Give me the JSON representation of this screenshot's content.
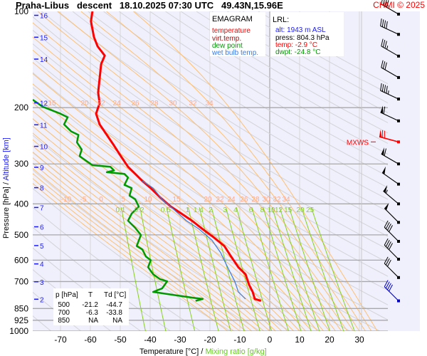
{
  "header": {
    "title": "Praha-Libus   descent   18.10.2025 07:30 UTC   49.43N,15.96E",
    "copyright": "CHMI © 2025"
  },
  "legend": {
    "title": "EMAGRAM",
    "items": [
      {
        "label": "temperature",
        "color": "#ff0000"
      },
      {
        "label": "virt.temp.",
        "color": "#a01010"
      },
      {
        "label": "dew point",
        "color": "#009900"
      },
      {
        "label": "wet bulb temp.",
        "color": "#3a7be0"
      }
    ]
  },
  "lrl": {
    "title": "LRL:",
    "alt": "alt: 1943 m ASL",
    "press": "press: 804.3 hPa",
    "temp": "temp: -2.9 °C",
    "dwpt": "dwpt: -24.8 °C"
  },
  "table": {
    "headers": [
      "p [hPa]",
      "T",
      "Td [°C]"
    ],
    "rows": [
      [
        "500",
        "-21.2",
        "-44.7"
      ],
      [
        "700",
        "-6.3",
        "-33.8"
      ],
      [
        "850",
        "NA",
        "NA"
      ]
    ]
  },
  "mxws_label": "MXWS",
  "chart_data": {
    "type": "line",
    "title": "Praha-Libus descent 18.10.2025 07:30 UTC 49.43N,15.96E",
    "xlabel": "Temperature [°C]",
    "xlabel2": "Mixing ratio [g/kg]",
    "xlabel_sep": "/",
    "ylabel": "Pressure [hPa]",
    "ylabel_sep": "/",
    "ylabel2": "Altitude [km]",
    "xlim": [
      -80,
      39
    ],
    "ylim": [
      1000,
      100
    ],
    "x_ticks": [
      "-70",
      "-60",
      "-50",
      "-40",
      "-30",
      "-20",
      "-10",
      "0",
      "10",
      "20",
      "30"
    ],
    "p_ticks": [
      "100",
      "200",
      "300",
      "400",
      "500",
      "600",
      "700",
      "850",
      "925",
      "1000"
    ],
    "km_ticks": [
      "16",
      "15",
      "14",
      "12",
      "11",
      "10",
      "9",
      "8",
      "7",
      "6",
      "5",
      "4",
      "3",
      "2"
    ],
    "mixing_ratio_labels": [
      "0.1",
      "0.2",
      "0.5",
      "1",
      "1.4",
      "2",
      "3",
      "4",
      "6",
      "8",
      "10",
      "12",
      "15",
      "20",
      "25"
    ],
    "moist_labels_200": [
      "15",
      "20",
      "22",
      "24",
      "26",
      "28",
      "30",
      "32",
      "34"
    ],
    "moist_labels_400": [
      "-10",
      "-5",
      "0",
      "5",
      "10",
      "15",
      "20",
      "22",
      "24",
      "26",
      "28",
      "30",
      "32",
      "34"
    ],
    "series": [
      {
        "name": "temperature",
        "color": "#ff0000",
        "points": [
          [
            -59.3,
            100
          ],
          [
            -59.8,
            107.4
          ],
          [
            -58.8,
            120.3
          ],
          [
            -57.6,
            128.6
          ],
          [
            -55.2,
            137.5
          ],
          [
            -56.4,
            146.2
          ],
          [
            -56.9,
            162
          ],
          [
            -57.4,
            179.4
          ],
          [
            -56.9,
            193.6
          ],
          [
            -58.1,
            209
          ],
          [
            -56.9,
            225.6
          ],
          [
            -54.5,
            243.5
          ],
          [
            -52.1,
            262.8
          ],
          [
            -49.8,
            283.7
          ],
          [
            -47.4,
            306.3
          ],
          [
            -45,
            322.3
          ],
          [
            -42.6,
            339.2
          ],
          [
            -39.8,
            357
          ],
          [
            -36.7,
            381.5
          ],
          [
            -33.1,
            407.9
          ],
          [
            -29.5,
            429.2
          ],
          [
            -26,
            451.7
          ],
          [
            -22.4,
            480
          ],
          [
            -18.8,
            508.4
          ],
          [
            -15.2,
            541.8
          ],
          [
            -12.9,
            584.8
          ],
          [
            -10.5,
            631.3
          ],
          [
            -8.1,
            664.2
          ],
          [
            -6.9,
            717
          ],
          [
            -5.7,
            754.3
          ],
          [
            -5,
            793.6
          ],
          [
            -2.9,
            804.3
          ]
        ]
      },
      {
        "name": "dew point",
        "color": "#009900",
        "points": [
          [
            -79.3,
            188.9
          ],
          [
            -76,
            198.6
          ],
          [
            -70,
            209
          ],
          [
            -67.6,
            214.4
          ],
          [
            -68.8,
            225.6
          ],
          [
            -66.4,
            237.4
          ],
          [
            -64,
            243.5
          ],
          [
            -64.5,
            256.8
          ],
          [
            -62.9,
            270.5
          ],
          [
            -63.6,
            283.7
          ],
          [
            -61.7,
            292
          ],
          [
            -59.3,
            302.8
          ],
          [
            -53.3,
            306.3
          ],
          [
            -52.1,
            314.5
          ],
          [
            -54.5,
            318.5
          ],
          [
            -48.6,
            322.3
          ],
          [
            -47.4,
            331
          ],
          [
            -48.6,
            349
          ],
          [
            -46.2,
            357
          ],
          [
            -46.9,
            377
          ],
          [
            -45,
            387
          ],
          [
            -43.8,
            407.9
          ],
          [
            -46.2,
            429
          ],
          [
            -47.4,
            451.7
          ],
          [
            -45,
            475.5
          ],
          [
            -43.1,
            500.4
          ],
          [
            -44.5,
            541.8
          ],
          [
            -42.6,
            555.6
          ],
          [
            -41.4,
            584.8
          ],
          [
            -39.8,
            599.9
          ],
          [
            -40.7,
            631.3
          ],
          [
            -39,
            664.2
          ],
          [
            -36.7,
            688
          ],
          [
            -34.3,
            698.8
          ],
          [
            -36,
            735.6
          ],
          [
            -39,
            754.3
          ],
          [
            -26,
            786
          ],
          [
            -22.4,
            793.6
          ],
          [
            -24.8,
            804.3
          ]
        ]
      },
      {
        "name": "wet bulb temp.",
        "color": "#3a7be0",
        "points": [
          [
            -42.6,
            339
          ],
          [
            -39,
            357
          ],
          [
            -36,
            387
          ],
          [
            -31.9,
            418
          ],
          [
            -27.9,
            451.7
          ],
          [
            -23.6,
            480
          ],
          [
            -19.3,
            520
          ],
          [
            -16.4,
            569
          ],
          [
            -14.5,
            620
          ],
          [
            -12.9,
            664
          ],
          [
            -11.7,
            699
          ],
          [
            -10.5,
            754
          ],
          [
            -8.1,
            794
          ]
        ]
      }
    ],
    "wind_barbs": [
      {
        "p": 102,
        "dir": 300,
        "kt": 40
      },
      {
        "p": 118,
        "dir": 295,
        "kt": 40
      },
      {
        "p": 138,
        "dir": 300,
        "kt": 35
      },
      {
        "p": 161,
        "dir": 300,
        "kt": 30
      },
      {
        "p": 188,
        "dir": 295,
        "kt": 45
      },
      {
        "p": 220,
        "dir": 295,
        "kt": 60
      },
      {
        "p": 256,
        "dir": 285,
        "kt": 70,
        "mxws": true
      },
      {
        "p": 300,
        "dir": 300,
        "kt": 60
      },
      {
        "p": 347,
        "dir": 305,
        "kt": 50
      },
      {
        "p": 400,
        "dir": 310,
        "kt": 55
      },
      {
        "p": 457,
        "dir": 315,
        "kt": 50
      },
      {
        "p": 524,
        "dir": 315,
        "kt": 40
      },
      {
        "p": 596,
        "dir": 315,
        "kt": 40
      },
      {
        "p": 680,
        "dir": 315,
        "kt": 30
      },
      {
        "p": 804.3,
        "dir": 315,
        "kt": 40,
        "surface": true
      }
    ]
  }
}
